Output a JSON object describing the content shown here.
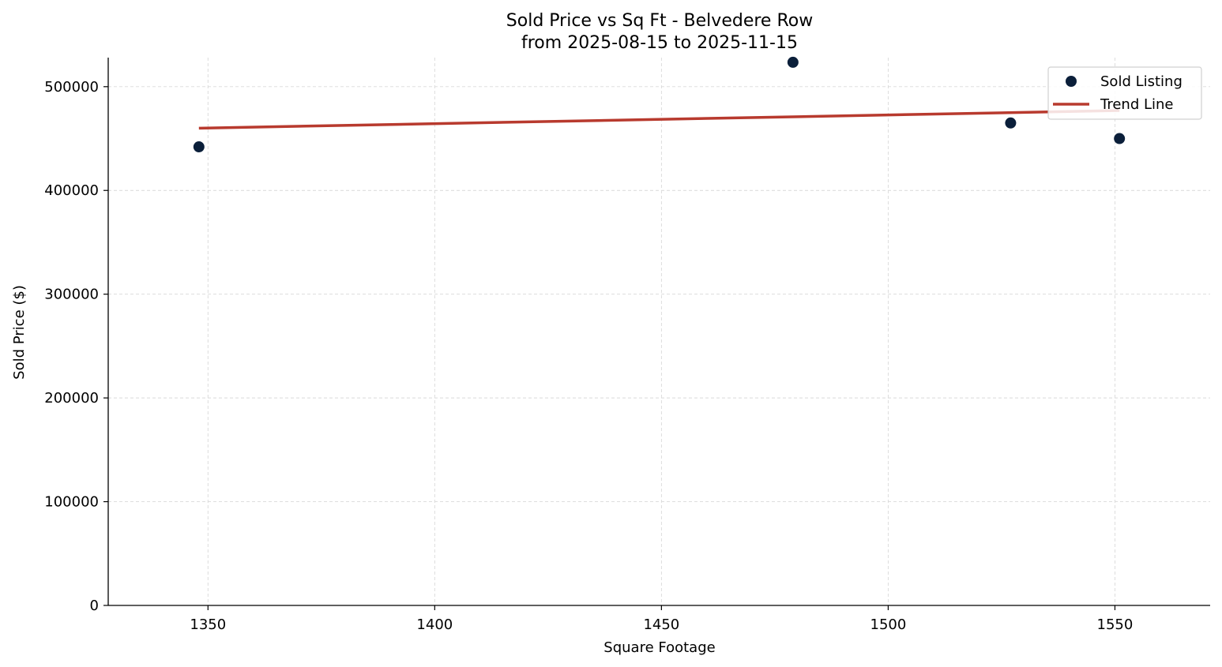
{
  "chart_data": {
    "type": "scatter",
    "title": "Sold Price vs Sq Ft - Belvedere Row",
    "subtitle": "from 2025-08-15 to 2025-11-15",
    "xlabel": "Square Footage",
    "ylabel": "Sold Price ($)",
    "xlim": [
      1328,
      1571
    ],
    "ylim": [
      0,
      528000
    ],
    "xticks": [
      1350,
      1400,
      1450,
      1500,
      1550
    ],
    "xtick_labels": [
      "1350",
      "1400",
      "1450",
      "1500",
      "1550"
    ],
    "yticks": [
      0,
      100000,
      200000,
      300000,
      400000,
      500000
    ],
    "ytick_labels": [
      "0",
      "100000",
      "200000",
      "300000",
      "400000",
      "500000"
    ],
    "grid": true,
    "legend_position": "top-right",
    "series": [
      {
        "name": "Sold Listing",
        "kind": "scatter",
        "color": "#0b1f3a",
        "points": [
          {
            "x": 1348,
            "y": 442000
          },
          {
            "x": 1479,
            "y": 523500
          },
          {
            "x": 1527,
            "y": 465000
          },
          {
            "x": 1551,
            "y": 450000
          }
        ]
      },
      {
        "name": "Trend Line",
        "kind": "line",
        "color": "#b83a2e",
        "points": [
          {
            "x": 1348,
            "y": 460000
          },
          {
            "x": 1551,
            "y": 477000
          }
        ]
      }
    ]
  }
}
